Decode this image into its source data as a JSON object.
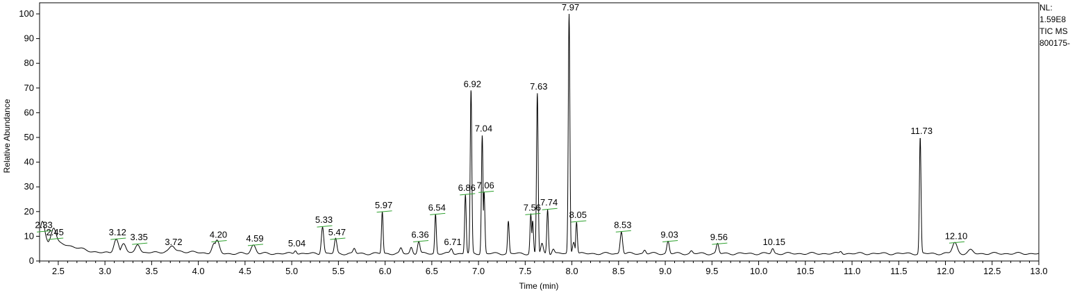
{
  "info": {
    "nl_label": "NL:",
    "nl_value": "1.59E8",
    "scan_filter": "TIC  MS",
    "sample": "800175-"
  },
  "chart_data": {
    "type": "line",
    "xlabel": "Time (min)",
    "ylabel": "Relative Abundance",
    "xlim": [
      2.3,
      13.0
    ],
    "ylim": [
      0,
      100
    ],
    "x_ticks": [
      "2.5",
      "3.0",
      "3.5",
      "4.0",
      "4.5",
      "5.0",
      "5.5",
      "6.0",
      "6.5",
      "7.0",
      "7.5",
      "8.0",
      "8.5",
      "9.0",
      "9.5",
      "10.0",
      "10.5",
      "11.0",
      "11.5",
      "12.0",
      "12.5",
      "13.0"
    ],
    "y_ticks": [
      "0",
      "10",
      "20",
      "30",
      "40",
      "50",
      "60",
      "70",
      "80",
      "90",
      "100"
    ],
    "grid": false,
    "line_color": "#000000",
    "annotation_color": "#2ca02c",
    "baseline": 3,
    "peaks": [
      {
        "rt": 2.33,
        "height": 12,
        "labeled": true,
        "label": "2.33"
      },
      {
        "rt": 2.45,
        "height": 9,
        "labeled": true,
        "label": "2.45"
      },
      {
        "rt": 3.12,
        "height": 9,
        "labeled": true,
        "label": "3.12"
      },
      {
        "rt": 3.2,
        "height": 7,
        "labeled": false
      },
      {
        "rt": 3.35,
        "height": 7,
        "labeled": true,
        "label": "3.35"
      },
      {
        "rt": 3.72,
        "height": 5,
        "labeled": true,
        "label": "3.72"
      },
      {
        "rt": 4.17,
        "height": 7,
        "labeled": false
      },
      {
        "rt": 4.2,
        "height": 8,
        "labeled": true,
        "label": "4.20"
      },
      {
        "rt": 4.59,
        "height": 6.5,
        "labeled": true,
        "label": "4.59"
      },
      {
        "rt": 5.04,
        "height": 4.5,
        "labeled": true,
        "label": "5.04"
      },
      {
        "rt": 5.33,
        "height": 14,
        "labeled": true,
        "label": "5.33"
      },
      {
        "rt": 5.47,
        "height": 9,
        "labeled": true,
        "label": "5.47"
      },
      {
        "rt": 5.67,
        "height": 5,
        "labeled": false
      },
      {
        "rt": 5.97,
        "height": 20,
        "labeled": true,
        "label": "5.97"
      },
      {
        "rt": 6.17,
        "height": 5,
        "labeled": false
      },
      {
        "rt": 6.28,
        "height": 5.5,
        "labeled": false
      },
      {
        "rt": 6.36,
        "height": 8,
        "labeled": true,
        "label": "6.36"
      },
      {
        "rt": 6.54,
        "height": 19,
        "labeled": true,
        "label": "6.54"
      },
      {
        "rt": 6.71,
        "height": 5,
        "labeled": true,
        "label": "6.71"
      },
      {
        "rt": 6.86,
        "height": 27,
        "labeled": true,
        "label": "6.86"
      },
      {
        "rt": 6.92,
        "height": 69,
        "labeled": true,
        "label": "6.92"
      },
      {
        "rt": 7.04,
        "height": 51,
        "labeled": true,
        "label": "7.04"
      },
      {
        "rt": 7.06,
        "height": 28,
        "labeled": true,
        "label": "7.06"
      },
      {
        "rt": 7.32,
        "height": 16,
        "labeled": false
      },
      {
        "rt": 7.56,
        "height": 19,
        "labeled": true,
        "label": "7.56"
      },
      {
        "rt": 7.58,
        "height": 16,
        "labeled": false
      },
      {
        "rt": 7.63,
        "height": 68,
        "labeled": true,
        "label": "7.63"
      },
      {
        "rt": 7.68,
        "height": 7,
        "labeled": false
      },
      {
        "rt": 7.74,
        "height": 21,
        "labeled": true,
        "label": "7.74"
      },
      {
        "rt": 7.8,
        "height": 5,
        "labeled": false
      },
      {
        "rt": 7.97,
        "height": 100,
        "labeled": true,
        "label": "7.97"
      },
      {
        "rt": 8.02,
        "height": 8,
        "labeled": false
      },
      {
        "rt": 8.05,
        "height": 16,
        "labeled": true,
        "label": "8.05"
      },
      {
        "rt": 8.53,
        "height": 12,
        "labeled": true,
        "label": "8.53"
      },
      {
        "rt": 8.78,
        "height": 4.5,
        "labeled": false
      },
      {
        "rt": 9.03,
        "height": 8,
        "labeled": true,
        "label": "9.03"
      },
      {
        "rt": 9.28,
        "height": 4,
        "labeled": false
      },
      {
        "rt": 9.56,
        "height": 7,
        "labeled": true,
        "label": "9.56"
      },
      {
        "rt": 10.15,
        "height": 5,
        "labeled": true,
        "label": "10.15"
      },
      {
        "rt": 10.88,
        "height": 4,
        "labeled": false
      },
      {
        "rt": 11.73,
        "height": 50,
        "labeled": true,
        "label": "11.73"
      },
      {
        "rt": 12.1,
        "height": 7.5,
        "labeled": true,
        "label": "12.10"
      },
      {
        "rt": 12.27,
        "height": 4.3,
        "labeled": false
      }
    ]
  }
}
